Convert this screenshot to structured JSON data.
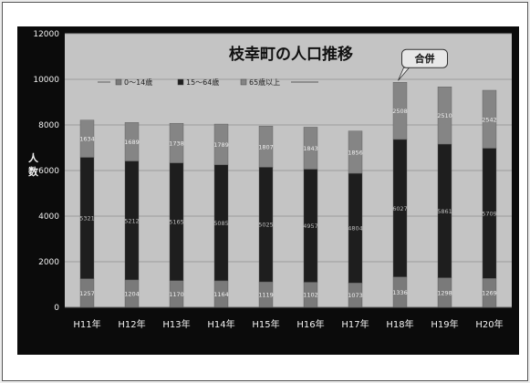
{
  "chart_data": {
    "type": "bar",
    "stacked": true,
    "title": "枝幸町の人口推移",
    "ylabel": "人数",
    "xlabel": "",
    "ylim": [
      0,
      12000
    ],
    "yticks": [
      "0",
      "2000",
      "4000",
      "6000",
      "8000",
      "10000",
      "12000"
    ],
    "categories": [
      "H11年",
      "H12年",
      "H13年",
      "H14年",
      "H15年",
      "H16年",
      "H17年",
      "H18年",
      "H19年",
      "H20年"
    ],
    "series": [
      {
        "name": "0～14歳",
        "values": [
          1257,
          1204,
          1170,
          1164,
          1119,
          1102,
          1073,
          1336,
          1298,
          1269
        ]
      },
      {
        "name": "15～64歳",
        "values": [
          5321,
          5212,
          5165,
          5085,
          5025,
          4957,
          4804,
          6027,
          5861,
          5709
        ]
      },
      {
        "name": "65歳以上",
        "values": [
          1634,
          1689,
          1738,
          1789,
          1807,
          1843,
          1856,
          2508,
          2510,
          2542
        ]
      }
    ],
    "legend_position": "top-left",
    "grid": true,
    "annotation": "合併",
    "colors": {
      "plot_bg": "#c4c4c4",
      "outer_bg": "#0b0b0b",
      "seg_bottom": "#7a7a7a",
      "seg_middle": "#1e1e1e",
      "seg_top": "#858585"
    }
  }
}
